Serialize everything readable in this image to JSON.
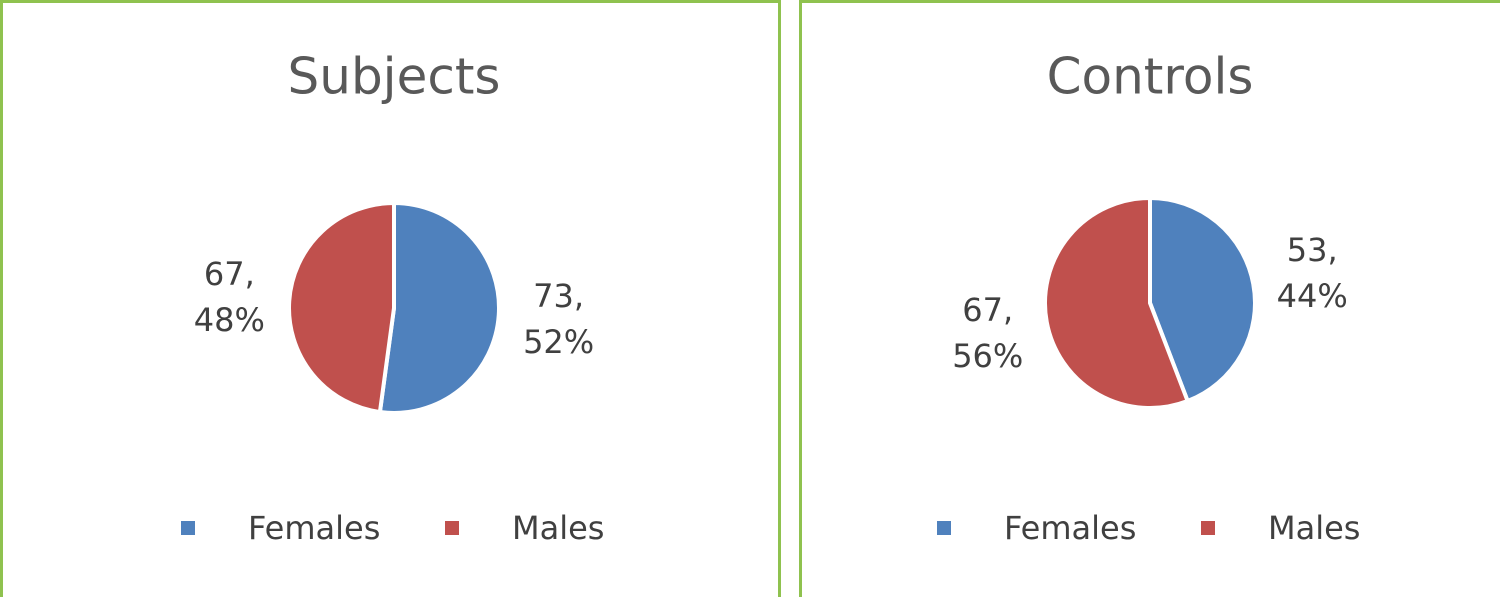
{
  "chart_data": [
    {
      "type": "pie",
      "title": "Subjects",
      "categories": [
        "Females",
        "Males"
      ],
      "values": [
        73,
        67
      ],
      "value_labels": [
        "73, 52%",
        "67, 48%"
      ],
      "colors": [
        "#4f81bd",
        "#c0504d"
      ]
    },
    {
      "type": "pie",
      "title": "Controls",
      "categories": [
        "Females",
        "Males"
      ],
      "values": [
        53,
        67
      ],
      "value_labels": [
        "53, 44%",
        "67, 56%"
      ],
      "colors": [
        "#4f81bd",
        "#c0504d"
      ]
    }
  ]
}
